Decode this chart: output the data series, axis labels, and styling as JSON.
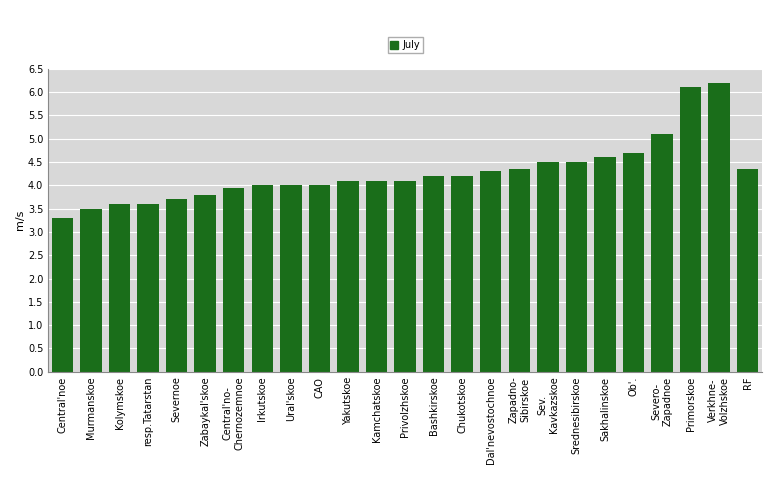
{
  "categories": [
    "Central'noe",
    "Murmanskoe",
    "Kolymskoe",
    "resp.Tatarstan",
    "Severnoe",
    "Zabaykal'skoe",
    "Central'no-\nChernozemnoe",
    "Irkutskoe",
    "Ural'skoe",
    "CAO",
    "Yakutskoe",
    "Kamchatskoe",
    "Privolzhskoe",
    "Bashkirskoe",
    "Chukotskoe",
    "Dal'nevostochnoe",
    "Zapadno-\nSibirskoe",
    "Sev.\nKavkazskoe",
    "Srednesibirskoe",
    "Sakhalinskoe",
    "Ob'.",
    "Severo-\nZapadnoe",
    "Primorskoe",
    "Verkhne-\nVolzhskoe",
    "RF"
  ],
  "values": [
    3.3,
    3.5,
    3.6,
    3.6,
    3.7,
    3.8,
    3.95,
    4.0,
    4.0,
    4.0,
    4.1,
    4.1,
    4.1,
    4.2,
    4.2,
    4.3,
    4.35,
    4.5,
    4.5,
    4.6,
    4.7,
    5.1,
    6.1,
    6.2,
    4.35
  ],
  "bar_color": "#1a6e1a",
  "ylabel": "m/s",
  "ylim": [
    0,
    6.5
  ],
  "yticks": [
    0,
    0.5,
    1.0,
    1.5,
    2.0,
    2.5,
    3.0,
    3.5,
    4.0,
    4.5,
    5.0,
    5.5,
    6.0,
    6.5
  ],
  "legend_label": "July",
  "legend_color": "#1a6e1a",
  "fig_bg_color": "#ffffff",
  "ax_bg_color": "#d8d8d8",
  "grid_color": "#ffffff",
  "label_fontsize": 7,
  "ylabel_fontsize": 8,
  "legend_fontsize": 7,
  "bar_width": 0.75
}
